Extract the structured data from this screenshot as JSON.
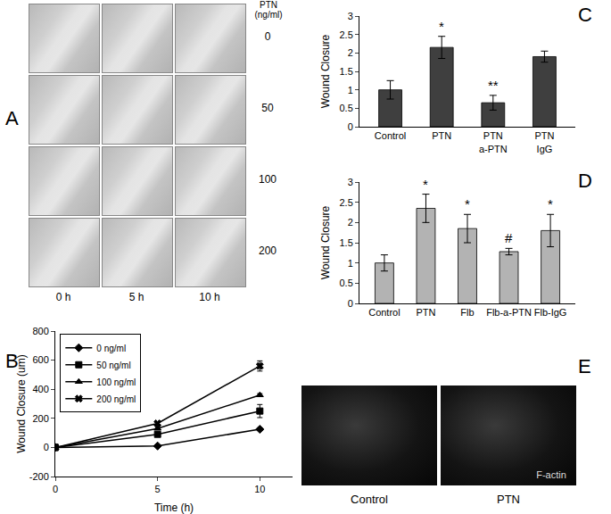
{
  "panel_a": {
    "panel": "A",
    "row_header": "PTN\n(ng/ml)",
    "rows": [
      "0",
      "50",
      "100",
      "200"
    ],
    "columns": [
      "0 h",
      "5 h",
      "10 h"
    ]
  },
  "chart_data": [
    {
      "panel": "B",
      "type": "line",
      "x_label": "Time (h)",
      "y_label": "Wound Closure (um)",
      "x": [
        0,
        5,
        10
      ],
      "xlim": [
        0,
        11.6
      ],
      "xticks": [
        0,
        5,
        10
      ],
      "ylim": [
        -200,
        800
      ],
      "yticks": [
        -200,
        0,
        200,
        400,
        600,
        800
      ],
      "grid": false,
      "legend": "upper left",
      "series": [
        {
          "name": "0 ng/ml",
          "color": "#000000",
          "marker": "diamond",
          "values": [
            0,
            10,
            125
          ],
          "errors": [
            5,
            5,
            8
          ]
        },
        {
          "name": "50 ng/ml",
          "color": "#000000",
          "marker": "square",
          "values": [
            0,
            90,
            250
          ],
          "errors": [
            20,
            15,
            45
          ]
        },
        {
          "name": "100 ng/ml",
          "color": "#000000",
          "marker": "triangle",
          "values": [
            0,
            130,
            360
          ],
          "errors": [
            5,
            8,
            10
          ]
        },
        {
          "name": "200 ng/ml",
          "color": "#000000",
          "marker": "x",
          "values": [
            0,
            165,
            560
          ],
          "errors": [
            5,
            8,
            35
          ]
        }
      ]
    },
    {
      "panel": "C",
      "type": "bar",
      "y_label": "Wound Closure",
      "categories": [
        "Control",
        "PTN",
        "PTN\na-PTN",
        "PTN\nIgG"
      ],
      "values": [
        1.0,
        2.15,
        0.65,
        1.9
      ],
      "errors": [
        0.25,
        0.3,
        0.2,
        0.15
      ],
      "color": "#3f3f3f",
      "ylim": [
        0,
        3
      ],
      "yticks": [
        0,
        0.5,
        1,
        1.5,
        2,
        2.5,
        3
      ],
      "grid": false,
      "annotations": [
        {
          "category": "PTN",
          "text": "*"
        },
        {
          "category": "PTN\na-PTN",
          "text": "**"
        }
      ]
    },
    {
      "panel": "D",
      "type": "bar",
      "y_label": "Wound Closure",
      "categories": [
        "Control",
        "PTN",
        "Flb",
        "Flb-a-PTN",
        "Flb-IgG"
      ],
      "values": [
        1.0,
        2.35,
        1.85,
        1.28,
        1.8
      ],
      "errors": [
        0.2,
        0.35,
        0.35,
        0.08,
        0.4
      ],
      "color": "#b3b3b3",
      "ylim": [
        0,
        3
      ],
      "yticks": [
        0,
        0.5,
        1,
        1.5,
        2,
        2.5,
        3
      ],
      "grid": false,
      "annotations": [
        {
          "category": "PTN",
          "text": "*"
        },
        {
          "category": "Flb",
          "text": "*"
        },
        {
          "category": "Flb-a-PTN",
          "text": "#"
        },
        {
          "category": "Flb-IgG",
          "text": "*"
        }
      ]
    }
  ],
  "panel_e": {
    "panel": "E",
    "images": [
      "Control",
      "PTN"
    ],
    "stain": "F-actin"
  }
}
